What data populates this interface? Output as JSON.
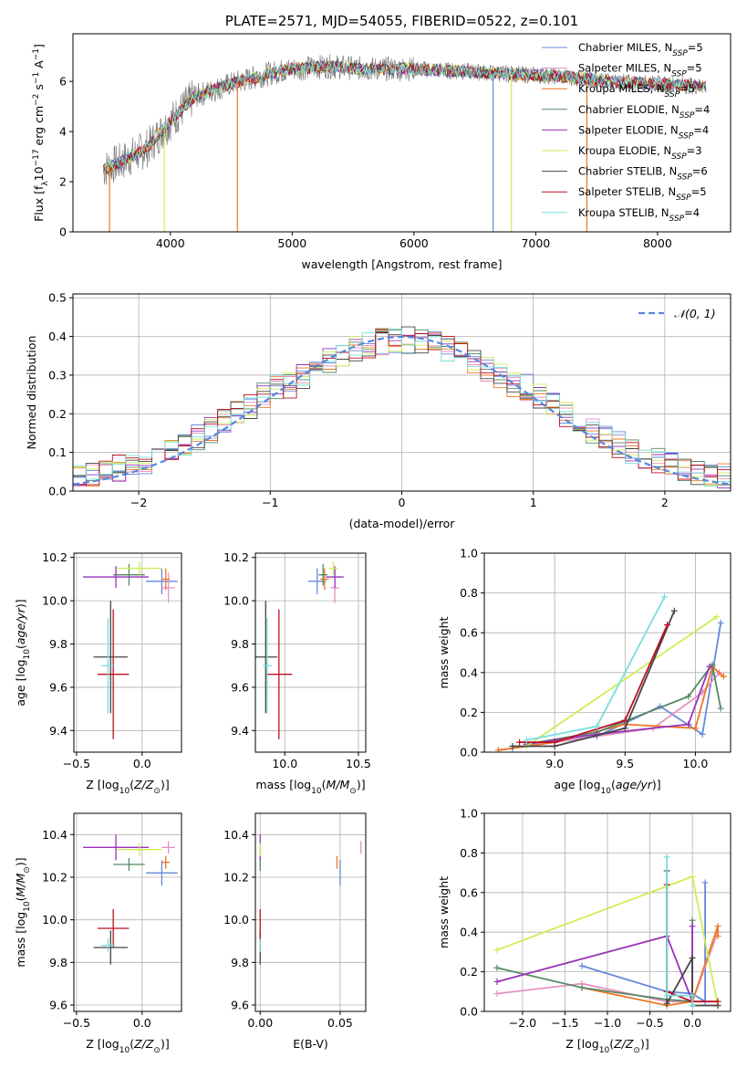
{
  "chart_data": [
    {
      "type": "line",
      "title": "PLATE=2571, MJD=54055, FIBERID=0522, z=0.101",
      "xlabel": "wavelength [Angstrom, rest frame]",
      "ylabel": "Flux [f_λ 10^-17 erg cm^-2 s^-1 A^-1]",
      "xlim": [
        3200,
        8600
      ],
      "ylim": [
        0,
        7.9
      ],
      "xticks": [
        4000,
        5000,
        6000,
        7000,
        8000
      ],
      "yticks": [
        0,
        2,
        4,
        6
      ],
      "legend_position": "top-right",
      "legend": [
        {
          "label": "Chabrier MILES, N_SSP=5",
          "color": "#6688dd"
        },
        {
          "label": "Salpeter MILES, N_SSP=5",
          "color": "#e690c0"
        },
        {
          "label": "Kroupa MILES, N_SSP=5",
          "color": "#ee7722"
        },
        {
          "label": "Chabrier ELODIE, N_SSP=4",
          "color": "#558866"
        },
        {
          "label": "Salpeter ELODIE, N_SSP=4",
          "color": "#9933bb"
        },
        {
          "label": "Kroupa ELODIE, N_SSP=3",
          "color": "#ccee55"
        },
        {
          "label": "Chabrier STELIB, N_SSP=6",
          "color": "#444444"
        },
        {
          "label": "Salpeter STELIB, N_SSP=5",
          "color": "#bb1122"
        },
        {
          "label": "Kroupa STELIB, N_SSP=4",
          "color": "#77dddd"
        }
      ],
      "data_color": "#808080",
      "spectrum_envelope": {
        "x": [
          3450,
          3600,
          3800,
          4000,
          4200,
          4500,
          4800,
          5000,
          5300,
          5600,
          6000,
          6400,
          6800,
          7200,
          7600,
          8000,
          8400
        ],
        "y": [
          2.5,
          2.8,
          3.3,
          4.4,
          5.4,
          5.9,
          6.3,
          6.5,
          6.6,
          6.5,
          6.5,
          6.4,
          6.3,
          6.2,
          6.0,
          5.9,
          5.8
        ]
      },
      "dips": [
        3500,
        3950,
        4550,
        6650,
        6800,
        7420
      ]
    },
    {
      "type": "line",
      "xlabel": "(data-model)/error",
      "ylabel": "Normed distribution",
      "xlim": [
        -2.5,
        2.5
      ],
      "ylim": [
        0,
        0.51
      ],
      "xticks": [
        -2,
        -1,
        0,
        1,
        2
      ],
      "yticks": [
        0.0,
        0.1,
        0.2,
        0.3,
        0.4,
        0.5
      ],
      "legend_position": "top-right",
      "legend": [
        {
          "label": "𝒩(0, 1)",
          "color": "#5588dd"
        }
      ],
      "gaussian": {
        "mu": 0,
        "sigma": 1
      }
    },
    {
      "type": "scatter",
      "xlabel": "Z [log10(Z/Z⊙)]",
      "ylabel": "age  [log10(age/yr)]",
      "xlim": [
        -0.52,
        0.3
      ],
      "ylim": [
        9.3,
        10.22
      ],
      "xticks": [
        -0.5,
        0.0
      ],
      "yticks": [
        9.4,
        9.6,
        9.8,
        10.0,
        10.2
      ],
      "points": [
        {
          "x": 0.15,
          "y": 10.09,
          "xerr": 0.12,
          "yerr": 0.06,
          "color": "#6688dd"
        },
        {
          "x": 0.2,
          "y": 10.06,
          "xerr": 0.05,
          "yerr": 0.07,
          "color": "#e690c0"
        },
        {
          "x": 0.18,
          "y": 10.1,
          "xerr": 0.03,
          "yerr": 0.05,
          "color": "#ee7722"
        },
        {
          "x": -0.1,
          "y": 10.12,
          "xerr": 0.12,
          "yerr": 0.05,
          "color": "#558866"
        },
        {
          "x": -0.2,
          "y": 10.11,
          "xerr": 0.25,
          "yerr": 0.05,
          "color": "#9933bb"
        },
        {
          "x": -0.02,
          "y": 10.15,
          "xerr": 0.17,
          "yerr": 0.03,
          "color": "#ccee55"
        },
        {
          "x": -0.24,
          "y": 9.74,
          "xerr": 0.13,
          "yerr": 0.26,
          "color": "#444444"
        },
        {
          "x": -0.22,
          "y": 9.66,
          "xerr": 0.12,
          "yerr": 0.3,
          "color": "#bb1122"
        },
        {
          "x": -0.26,
          "y": 9.7,
          "xerr": 0.05,
          "yerr": 0.22,
          "color": "#77dddd"
        }
      ]
    },
    {
      "type": "scatter",
      "xlabel": "mass [log10(M/M⊙)]",
      "xlim": [
        9.8,
        10.55
      ],
      "ylim": [
        9.3,
        10.22
      ],
      "xticks": [
        10.0,
        10.5
      ],
      "yticks": [
        9.4,
        9.6,
        9.8,
        10.0,
        10.2
      ],
      "points": [
        {
          "x": 10.22,
          "y": 10.09,
          "xerr": 0.06,
          "yerr": 0.06,
          "color": "#6688dd"
        },
        {
          "x": 10.34,
          "y": 10.06,
          "xerr": 0.03,
          "yerr": 0.07,
          "color": "#e690c0"
        },
        {
          "x": 10.27,
          "y": 10.1,
          "xerr": 0.03,
          "yerr": 0.05,
          "color": "#ee7722"
        },
        {
          "x": 10.26,
          "y": 10.12,
          "xerr": 0.03,
          "yerr": 0.05,
          "color": "#558866"
        },
        {
          "x": 10.34,
          "y": 10.11,
          "xerr": 0.06,
          "yerr": 0.05,
          "color": "#9933bb"
        },
        {
          "x": 10.33,
          "y": 10.15,
          "xerr": 0.03,
          "yerr": 0.03,
          "color": "#ccee55"
        },
        {
          "x": 9.87,
          "y": 9.74,
          "xerr": 0.08,
          "yerr": 0.26,
          "color": "#444444"
        },
        {
          "x": 9.96,
          "y": 9.66,
          "xerr": 0.09,
          "yerr": 0.3,
          "color": "#bb1122"
        },
        {
          "x": 9.88,
          "y": 9.7,
          "xerr": 0.03,
          "yerr": 0.22,
          "color": "#77dddd"
        }
      ]
    },
    {
      "type": "line",
      "xlabel": "age  [log10(age/yr)]",
      "ylabel": "mass weight",
      "xlim": [
        8.5,
        10.25
      ],
      "ylim": [
        0,
        1.0
      ],
      "xticks": [
        9.0,
        9.5,
        10.0
      ],
      "yticks": [
        0.0,
        0.2,
        0.4,
        0.6,
        0.8,
        1.0
      ],
      "series": [
        {
          "color": "#6688dd",
          "x": [
            8.7,
            9.3,
            9.75,
            10.05,
            10.18
          ],
          "y": [
            0.02,
            0.08,
            0.23,
            0.09,
            0.65
          ]
        },
        {
          "color": "#e690c0",
          "x": [
            8.6,
            9.0,
            9.7,
            10.05,
            10.17
          ],
          "y": [
            0.01,
            0.05,
            0.12,
            0.3,
            0.4
          ]
        },
        {
          "color": "#ee7722",
          "x": [
            8.6,
            9.0,
            9.5,
            10.0,
            10.12,
            10.2
          ],
          "y": [
            0.01,
            0.05,
            0.14,
            0.12,
            0.43,
            0.38
          ]
        },
        {
          "color": "#558866",
          "x": [
            8.8,
            9.3,
            9.95,
            10.12,
            10.18
          ],
          "y": [
            0.04,
            0.1,
            0.28,
            0.44,
            0.22
          ]
        },
        {
          "color": "#9933bb",
          "x": [
            8.8,
            9.3,
            9.95,
            10.1
          ],
          "y": [
            0.04,
            0.09,
            0.14,
            0.43
          ]
        },
        {
          "color": "#ccee55",
          "x": [
            8.8,
            10.15
          ],
          "y": [
            0.03,
            0.68
          ]
        },
        {
          "color": "#444444",
          "x": [
            8.7,
            9.0,
            9.5,
            9.85
          ],
          "y": [
            0.03,
            0.03,
            0.12,
            0.71
          ]
        },
        {
          "color": "#bb1122",
          "x": [
            8.75,
            9.0,
            9.5,
            9.8
          ],
          "y": [
            0.05,
            0.05,
            0.16,
            0.64
          ]
        },
        {
          "color": "#77dddd",
          "x": [
            8.8,
            9.3,
            9.78
          ],
          "y": [
            0.06,
            0.13,
            0.78
          ]
        }
      ]
    },
    {
      "type": "scatter",
      "xlabel": "Z [log10(Z/Z⊙)]",
      "ylabel": "mass [log10(M/M⊙)]",
      "xlim": [
        -0.52,
        0.3
      ],
      "ylim": [
        9.57,
        10.5
      ],
      "xticks": [
        -0.5,
        0.0
      ],
      "yticks": [
        9.6,
        9.8,
        10.0,
        10.2,
        10.4
      ],
      "points": [
        {
          "x": 0.15,
          "y": 10.22,
          "xerr": 0.12,
          "yerr": 0.06,
          "color": "#6688dd"
        },
        {
          "x": 0.2,
          "y": 10.34,
          "xerr": 0.05,
          "yerr": 0.03,
          "color": "#e690c0"
        },
        {
          "x": 0.18,
          "y": 10.27,
          "xerr": 0.03,
          "yerr": 0.03,
          "color": "#ee7722"
        },
        {
          "x": -0.1,
          "y": 10.26,
          "xerr": 0.12,
          "yerr": 0.03,
          "color": "#558866"
        },
        {
          "x": -0.2,
          "y": 10.34,
          "xerr": 0.25,
          "yerr": 0.06,
          "color": "#9933bb"
        },
        {
          "x": -0.02,
          "y": 10.33,
          "xerr": 0.17,
          "yerr": 0.03,
          "color": "#ccee55"
        },
        {
          "x": -0.24,
          "y": 9.87,
          "xerr": 0.13,
          "yerr": 0.08,
          "color": "#444444"
        },
        {
          "x": -0.22,
          "y": 9.96,
          "xerr": 0.12,
          "yerr": 0.09,
          "color": "#bb1122"
        },
        {
          "x": -0.26,
          "y": 9.88,
          "xerr": 0.05,
          "yerr": 0.03,
          "color": "#77dddd"
        }
      ]
    },
    {
      "type": "scatter",
      "xlabel": "E(B-V)",
      "xlim": [
        -0.003,
        0.066
      ],
      "ylim": [
        9.57,
        10.5
      ],
      "xticks": [
        0.0,
        0.05
      ],
      "yticks": [
        9.6,
        9.8,
        10.0,
        10.2,
        10.4
      ],
      "points": [
        {
          "x": 0.05,
          "y": 10.22,
          "yerr": 0.06,
          "color": "#6688dd"
        },
        {
          "x": 0.063,
          "y": 10.34,
          "yerr": 0.03,
          "color": "#e690c0"
        },
        {
          "x": 0.048,
          "y": 10.27,
          "yerr": 0.03,
          "color": "#ee7722"
        },
        {
          "x": 0.0,
          "y": 10.26,
          "yerr": 0.03,
          "color": "#558866"
        },
        {
          "x": 0.0,
          "y": 10.34,
          "yerr": 0.06,
          "color": "#9933bb"
        },
        {
          "x": 0.0,
          "y": 10.33,
          "yerr": 0.03,
          "color": "#ccee55"
        },
        {
          "x": 0.0,
          "y": 9.87,
          "yerr": 0.08,
          "color": "#444444"
        },
        {
          "x": 0.0,
          "y": 9.96,
          "yerr": 0.09,
          "color": "#bb1122"
        },
        {
          "x": 0.0,
          "y": 9.88,
          "yerr": 0.03,
          "color": "#77dddd"
        }
      ]
    },
    {
      "type": "line",
      "xlabel": "Z [log10(Z/Z⊙)]",
      "ylabel": "mass weight",
      "xlim": [
        -2.45,
        0.45
      ],
      "ylim": [
        0,
        1.0
      ],
      "xticks": [
        -2.0,
        -1.5,
        -1.0,
        -0.5,
        0.0
      ],
      "yticks": [
        0.0,
        0.2,
        0.4,
        0.6,
        0.8,
        1.0
      ],
      "series": [
        {
          "color": "#6688dd",
          "x": [
            -1.3,
            -0.3,
            0.0,
            0.15,
            0.15
          ],
          "y": [
            0.23,
            0.1,
            0.09,
            0.05,
            0.65
          ]
        },
        {
          "color": "#e690c0",
          "x": [
            -2.3,
            -1.3,
            -0.3,
            0.0,
            0.3
          ],
          "y": [
            0.09,
            0.14,
            0.05,
            0.05,
            0.4
          ]
        },
        {
          "color": "#ee7722",
          "x": [
            -1.3,
            -0.3,
            0.0,
            0.3,
            0.3
          ],
          "y": [
            0.12,
            0.03,
            0.05,
            0.43,
            0.38
          ]
        },
        {
          "color": "#558866",
          "x": [
            -2.3,
            -1.3,
            -0.3,
            0.0,
            0.0
          ],
          "y": [
            0.22,
            0.12,
            0.06,
            0.05,
            0.46
          ]
        },
        {
          "color": "#9933bb",
          "x": [
            -2.3,
            -0.3,
            0.0,
            0.0
          ],
          "y": [
            0.15,
            0.38,
            0.05,
            0.43
          ]
        },
        {
          "color": "#ccee55",
          "x": [
            -2.3,
            0.0,
            0.3
          ],
          "y": [
            0.31,
            0.68,
            0.03
          ]
        },
        {
          "color": "#444444",
          "x": [
            -0.3,
            -0.3,
            0.0,
            0.0,
            0.3
          ],
          "y": [
            0.71,
            0.04,
            0.27,
            0.03,
            0.03
          ]
        },
        {
          "color": "#bb1122",
          "x": [
            -0.3,
            -0.3,
            0.0,
            0.3
          ],
          "y": [
            0.64,
            0.1,
            0.05,
            0.05
          ]
        },
        {
          "color": "#77dddd",
          "x": [
            -0.3,
            -0.3,
            0.0,
            0.0
          ],
          "y": [
            0.78,
            0.08,
            0.08,
            0.03
          ]
        }
      ]
    }
  ]
}
